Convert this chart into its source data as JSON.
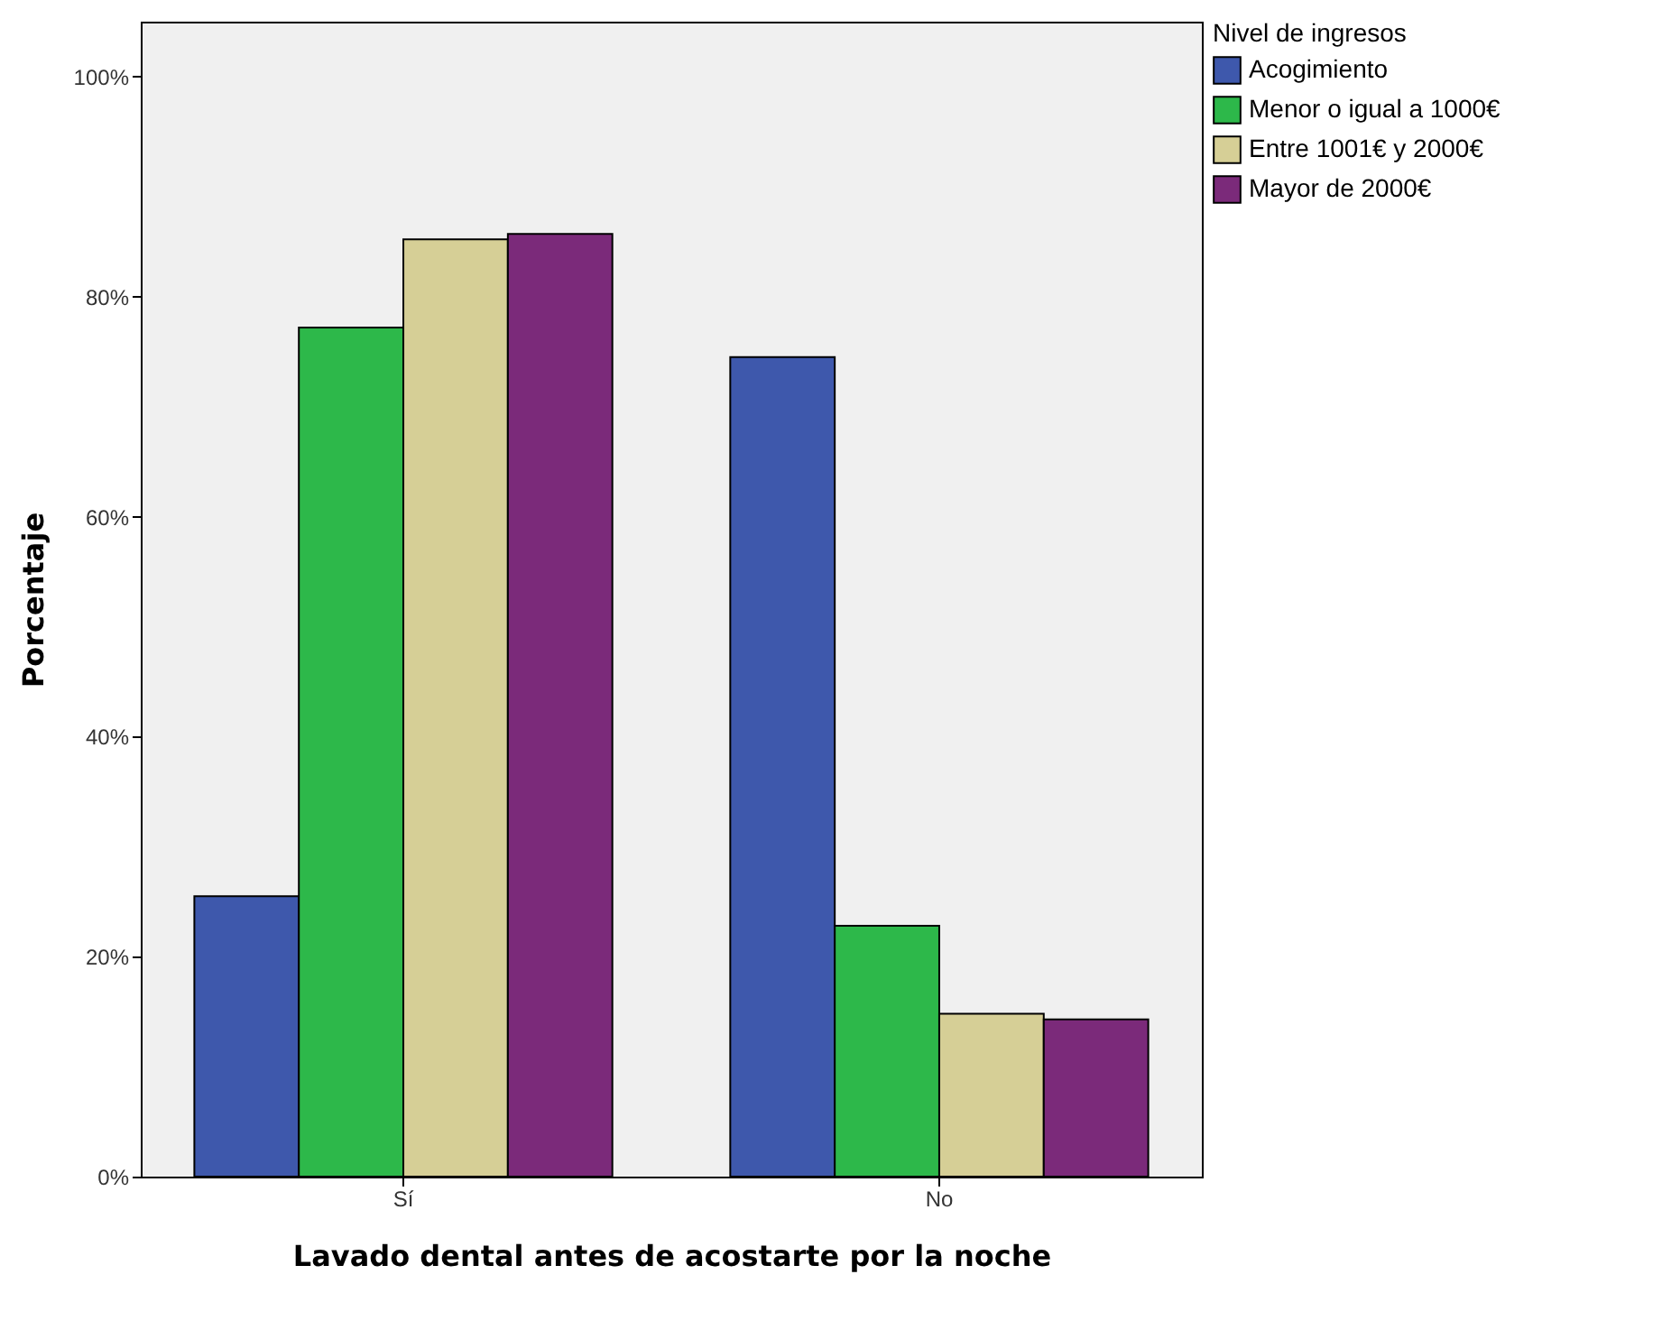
{
  "chart_data": {
    "type": "bar",
    "xlabel": "Lavado dental antes de acostarte por la noche",
    "ylabel": "Porcentaje",
    "legend_title": "Nivel de ingresos",
    "categories": [
      "Sí",
      "No"
    ],
    "series": [
      {
        "name": "Acogimiento",
        "color": "#3e58ac",
        "values": [
          25.5,
          74.5
        ]
      },
      {
        "name": "Menor o igual a 1000€",
        "color": "#2db84a",
        "values": [
          77.2,
          22.8
        ]
      },
      {
        "name": "Entre 1001€ y 2000€",
        "color": "#d6cf96",
        "values": [
          85.2,
          14.8
        ]
      },
      {
        "name": "Mayor de 2000€",
        "color": "#7b2a7a",
        "values": [
          85.7,
          14.3
        ]
      }
    ],
    "ylim": [
      0,
      105
    ],
    "yticks": [
      {
        "value": 0,
        "label": "0%"
      },
      {
        "value": 20,
        "label": "20%"
      },
      {
        "value": 40,
        "label": "40%"
      },
      {
        "value": 60,
        "label": "60%"
      },
      {
        "value": 80,
        "label": "80%"
      },
      {
        "value": 100,
        "label": "100%"
      }
    ],
    "grid": false,
    "legend": "top right"
  }
}
